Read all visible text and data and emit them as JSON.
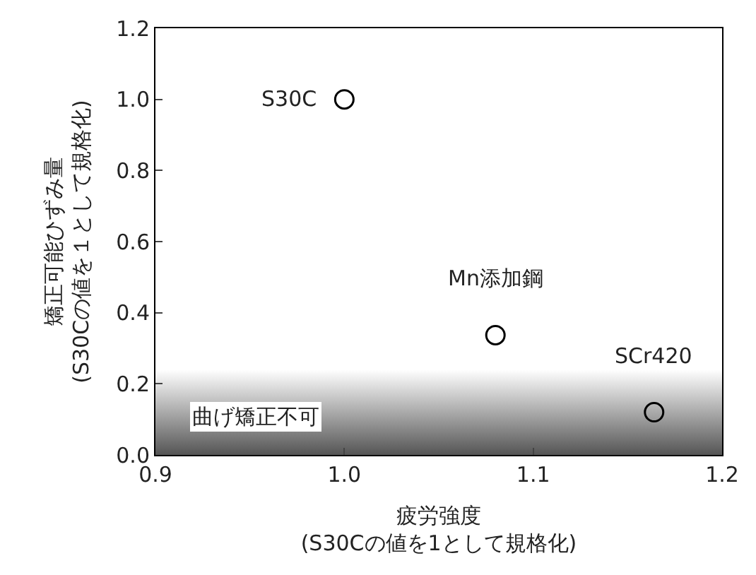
{
  "chart_data": {
    "type": "scatter",
    "xlabel": "疲労強度\n(S30Cの値を1として規格化)",
    "ylabel": "矯正可能ひずみ量\n(S30Cの値を１として規格化)",
    "x": [
      1.0,
      1.08,
      1.164
    ],
    "values": [
      1.0,
      0.337,
      0.12
    ],
    "color": "#000000",
    "marker": "circle",
    "xlim": [
      0.9,
      1.2
    ],
    "xticks": [
      {
        "value": 0.9,
        "label": "0.9"
      },
      {
        "value": 1.0,
        "label": "1.0"
      },
      {
        "value": 1.1,
        "label": "1.1"
      },
      {
        "value": 1.2,
        "label": "1.2"
      }
    ],
    "ylim": [
      0,
      1.2
    ],
    "yticks": [
      {
        "value": 0,
        "label": "0.0"
      },
      {
        "value": 0.2,
        "label": "0.2"
      },
      {
        "value": 0.4,
        "label": "0.4"
      },
      {
        "value": 0.6,
        "label": "0.6"
      },
      {
        "value": 0.8,
        "label": "0.8"
      },
      {
        "value": 1.0,
        "label": "1.0"
      },
      {
        "value": 1.2,
        "label": "1.2"
      }
    ],
    "annotations": [
      {
        "text": "S30C",
        "x": 1.0,
        "y": 1.0
      },
      {
        "text": "Mn添加鋼",
        "x": 1.08,
        "y": 0.337
      },
      {
        "text": "SCr420",
        "x": 1.164,
        "y": 0.12
      }
    ],
    "bands": [
      {
        "axis": "y",
        "from": 0,
        "to": 0.24,
        "label": "曲げ矯正不可",
        "color": "#555555"
      }
    ],
    "legend": false
  }
}
